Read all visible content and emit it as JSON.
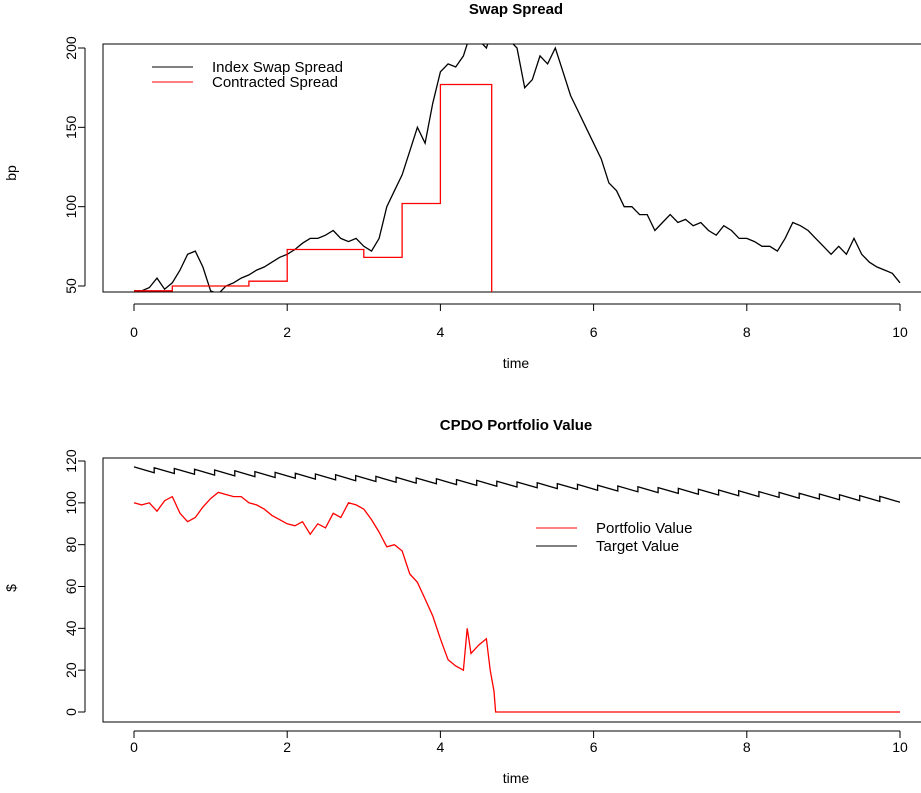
{
  "chart_data": [
    {
      "type": "line",
      "title": "Swap Spread",
      "xlabel": "time",
      "ylabel": "bp",
      "xlim": [
        0,
        10
      ],
      "ylim": [
        35,
        225
      ],
      "xticks": [
        "0",
        "2",
        "4",
        "6",
        "8",
        "10"
      ],
      "yticks": [
        "50",
        "100",
        "150",
        "200"
      ],
      "legend_position": "top-left",
      "grid": false,
      "series": [
        {
          "name": "Index Swap Spread",
          "color": "#000000",
          "x": [
            0,
            0.1,
            0.2,
            0.3,
            0.4,
            0.5,
            0.6,
            0.7,
            0.8,
            0.9,
            1.0,
            1.1,
            1.2,
            1.3,
            1.4,
            1.5,
            1.6,
            1.7,
            1.8,
            1.9,
            2.0,
            2.1,
            2.2,
            2.3,
            2.4,
            2.5,
            2.6,
            2.7,
            2.8,
            2.9,
            3.0,
            3.1,
            3.2,
            3.3,
            3.4,
            3.5,
            3.6,
            3.7,
            3.8,
            3.9,
            4.0,
            4.1,
            4.2,
            4.3,
            4.4,
            4.5,
            4.6,
            4.7,
            4.8,
            4.9,
            5.0,
            5.1,
            5.2,
            5.3,
            5.4,
            5.5,
            5.6,
            5.7,
            5.8,
            5.9,
            6.0,
            6.1,
            6.2,
            6.3,
            6.4,
            6.5,
            6.6,
            6.7,
            6.8,
            6.9,
            7.0,
            7.1,
            7.2,
            7.3,
            7.4,
            7.5,
            7.6,
            7.7,
            7.8,
            7.9,
            8.0,
            8.1,
            8.2,
            8.3,
            8.4,
            8.5,
            8.6,
            8.7,
            8.8,
            8.9,
            9.0,
            9.1,
            9.2,
            9.3,
            9.4,
            9.5,
            9.6,
            9.7,
            9.8,
            9.9,
            10.0
          ],
          "y": [
            47,
            47,
            49,
            55,
            48,
            52,
            60,
            70,
            72,
            62,
            47,
            45,
            50,
            52,
            55,
            57,
            60,
            62,
            65,
            68,
            70,
            73,
            77,
            80,
            80,
            82,
            85,
            80,
            78,
            80,
            75,
            72,
            80,
            100,
            110,
            120,
            135,
            150,
            140,
            165,
            185,
            190,
            188,
            195,
            210,
            205,
            200,
            215,
            210,
            205,
            200,
            175,
            180,
            195,
            190,
            200,
            185,
            170,
            160,
            150,
            140,
            130,
            115,
            110,
            100,
            100,
            95,
            95,
            85,
            90,
            95,
            90,
            92,
            88,
            90,
            85,
            82,
            88,
            85,
            80,
            80,
            78,
            75,
            75,
            72,
            80,
            90,
            88,
            85,
            80,
            75,
            70,
            75,
            70,
            80,
            70,
            65,
            62,
            60,
            58,
            52
          ]
        },
        {
          "name": "Contracted Spread",
          "color": "#ff0000",
          "x": [
            0,
            0.5,
            0.5,
            1.5,
            1.5,
            2.0,
            2.0,
            3.0,
            3.0,
            3.5,
            3.5,
            4.0,
            4.0,
            4.67,
            4.67
          ],
          "y": [
            47,
            47,
            50,
            50,
            53,
            53,
            73,
            73,
            68,
            68,
            102,
            102,
            177,
            177,
            35
          ]
        }
      ]
    },
    {
      "type": "line",
      "title": "CPDO Portfolio Value",
      "xlabel": "time",
      "ylabel": "$",
      "xlim": [
        0,
        10
      ],
      "ylim": [
        -5,
        122
      ],
      "xticks": [
        "0",
        "2",
        "4",
        "6",
        "8",
        "10"
      ],
      "yticks": [
        "0",
        "20",
        "40",
        "60",
        "80",
        "100",
        "120"
      ],
      "legend_position": "center-right",
      "grid": false,
      "series": [
        {
          "name": "Portfolio Value",
          "color": "#ff0000",
          "x": [
            0,
            0.1,
            0.2,
            0.3,
            0.4,
            0.5,
            0.6,
            0.7,
            0.8,
            0.9,
            1.0,
            1.1,
            1.2,
            1.3,
            1.4,
            1.5,
            1.6,
            1.7,
            1.8,
            1.9,
            2.0,
            2.1,
            2.2,
            2.3,
            2.4,
            2.5,
            2.6,
            2.7,
            2.8,
            2.9,
            3.0,
            3.1,
            3.2,
            3.3,
            3.4,
            3.5,
            3.6,
            3.7,
            3.8,
            3.9,
            4.0,
            4.05,
            4.1,
            4.2,
            4.3,
            4.35,
            4.4,
            4.5,
            4.6,
            4.65,
            4.7,
            4.72,
            5,
            6,
            7,
            8,
            9,
            10
          ],
          "y": [
            100,
            99,
            100,
            96,
            101,
            103,
            95,
            91,
            93,
            98,
            102,
            105,
            104,
            103,
            103,
            100,
            99,
            97,
            94,
            92,
            90,
            89,
            91,
            85,
            90,
            88,
            95,
            93,
            100,
            99,
            97,
            92,
            86,
            79,
            80,
            77,
            66,
            62,
            54,
            46,
            35,
            30,
            25,
            22,
            20,
            40,
            28,
            32,
            35,
            20,
            10,
            0,
            0,
            0,
            0,
            0,
            0,
            0
          ]
        },
        {
          "name": "Target Value",
          "color": "#000000",
          "x": [
            0,
            10
          ],
          "y": [
            116,
            101.5
          ]
        }
      ]
    }
  ]
}
